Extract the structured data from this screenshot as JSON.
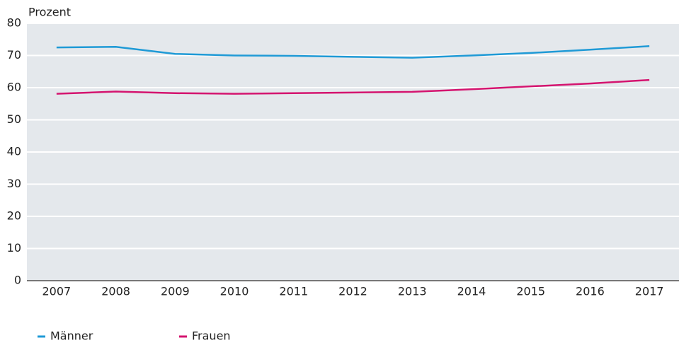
{
  "chart_data": {
    "type": "line",
    "y_label": "Prozent",
    "categories": [
      "2007",
      "2008",
      "2009",
      "2010",
      "2011",
      "2012",
      "2013",
      "2014",
      "2015",
      "2016",
      "2017"
    ],
    "series": [
      {
        "name": "Männer",
        "color": "#1f9ad6",
        "values": [
          72.5,
          72.7,
          70.5,
          70.0,
          69.9,
          69.6,
          69.3,
          70.0,
          70.8,
          71.8,
          72.9
        ]
      },
      {
        "name": "Frauen",
        "color": "#d4146f",
        "values": [
          58.1,
          58.8,
          58.3,
          58.1,
          58.3,
          58.5,
          58.7,
          59.5,
          60.4,
          61.3,
          62.4
        ]
      }
    ],
    "ylim": [
      0,
      80
    ],
    "yticks": [
      0,
      10,
      20,
      30,
      40,
      50,
      60,
      70,
      80
    ],
    "grid": true
  }
}
